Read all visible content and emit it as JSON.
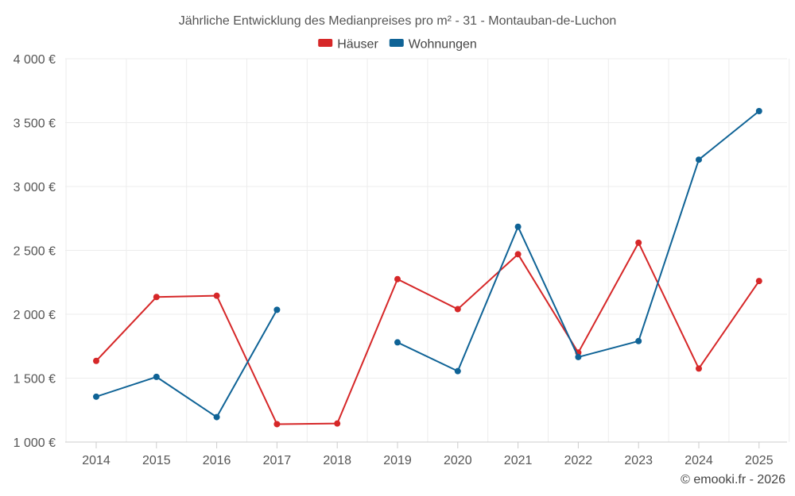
{
  "chart_data": {
    "type": "line",
    "title": "Jährliche Entwicklung des Medianpreises pro m² - 31 - Montauban-de-Luchon",
    "categories": [
      "2014",
      "2015",
      "2016",
      "2017",
      "2018",
      "2019",
      "2020",
      "2021",
      "2022",
      "2023",
      "2024",
      "2025"
    ],
    "series": [
      {
        "name": "Häuser",
        "color": "#d62728",
        "values": [
          1635,
          2135,
          2145,
          1140,
          1145,
          2275,
          2040,
          2470,
          1700,
          2560,
          1575,
          2260
        ]
      },
      {
        "name": "Wohnungen",
        "color": "#0f6396",
        "values": [
          1355,
          1510,
          1195,
          2035,
          null,
          1780,
          1555,
          2685,
          1665,
          1790,
          3210,
          3590
        ]
      }
    ],
    "y_ticks": [
      1000,
      1500,
      2000,
      2500,
      3000,
      3500,
      4000
    ],
    "y_tick_labels": [
      "1 000 €",
      "1 500 €",
      "2 000 €",
      "2 500 €",
      "3 000 €",
      "3 500 €",
      "4 000 €"
    ],
    "ylim": [
      1000,
      4000
    ],
    "xlabel": "",
    "ylabel": "",
    "grid": true,
    "legend_position": "top-center"
  },
  "credit": "© emooki.fr - 2026"
}
